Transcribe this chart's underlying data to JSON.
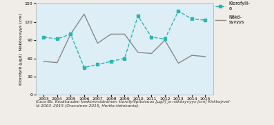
{
  "years": [
    2003,
    2004,
    2005,
    2006,
    2007,
    2008,
    2009,
    2010,
    2011,
    2012,
    2013,
    2014,
    2015
  ],
  "chlorophyll": [
    95,
    92,
    100,
    45,
    50,
    55,
    60,
    130,
    95,
    92,
    138,
    125,
    123
  ],
  "visibility": [
    55,
    53,
    100,
    133,
    85,
    100,
    100,
    70,
    68,
    90,
    52,
    65,
    63
  ],
  "chlorophyll_color": "#2ab5b0",
  "visibility_color": "#888888",
  "plot_bg_color": "#ddeef6",
  "fig_bg_color": "#f0ede8",
  "ylim": [
    0,
    150
  ],
  "yticks": [
    0,
    30,
    60,
    90,
    120,
    150
  ],
  "ylabel_left": "Klorofylli (µg/l)  Näkösyvyys (cm)",
  "legend_chlorophyll": "Klorofylli-\na",
  "legend_visibility": "Näkö-\nsyvyys",
  "caption_line1": "Kuva 8b. Kesäkauden keskimmääräinen klorofyllipitoisuus [µg/l] ja näkösyvyys [cm] Kirkkojrvel-",
  "caption_line2": "lä 2003–2015 (Oravainen 2015, Hertta-tietokanta)."
}
